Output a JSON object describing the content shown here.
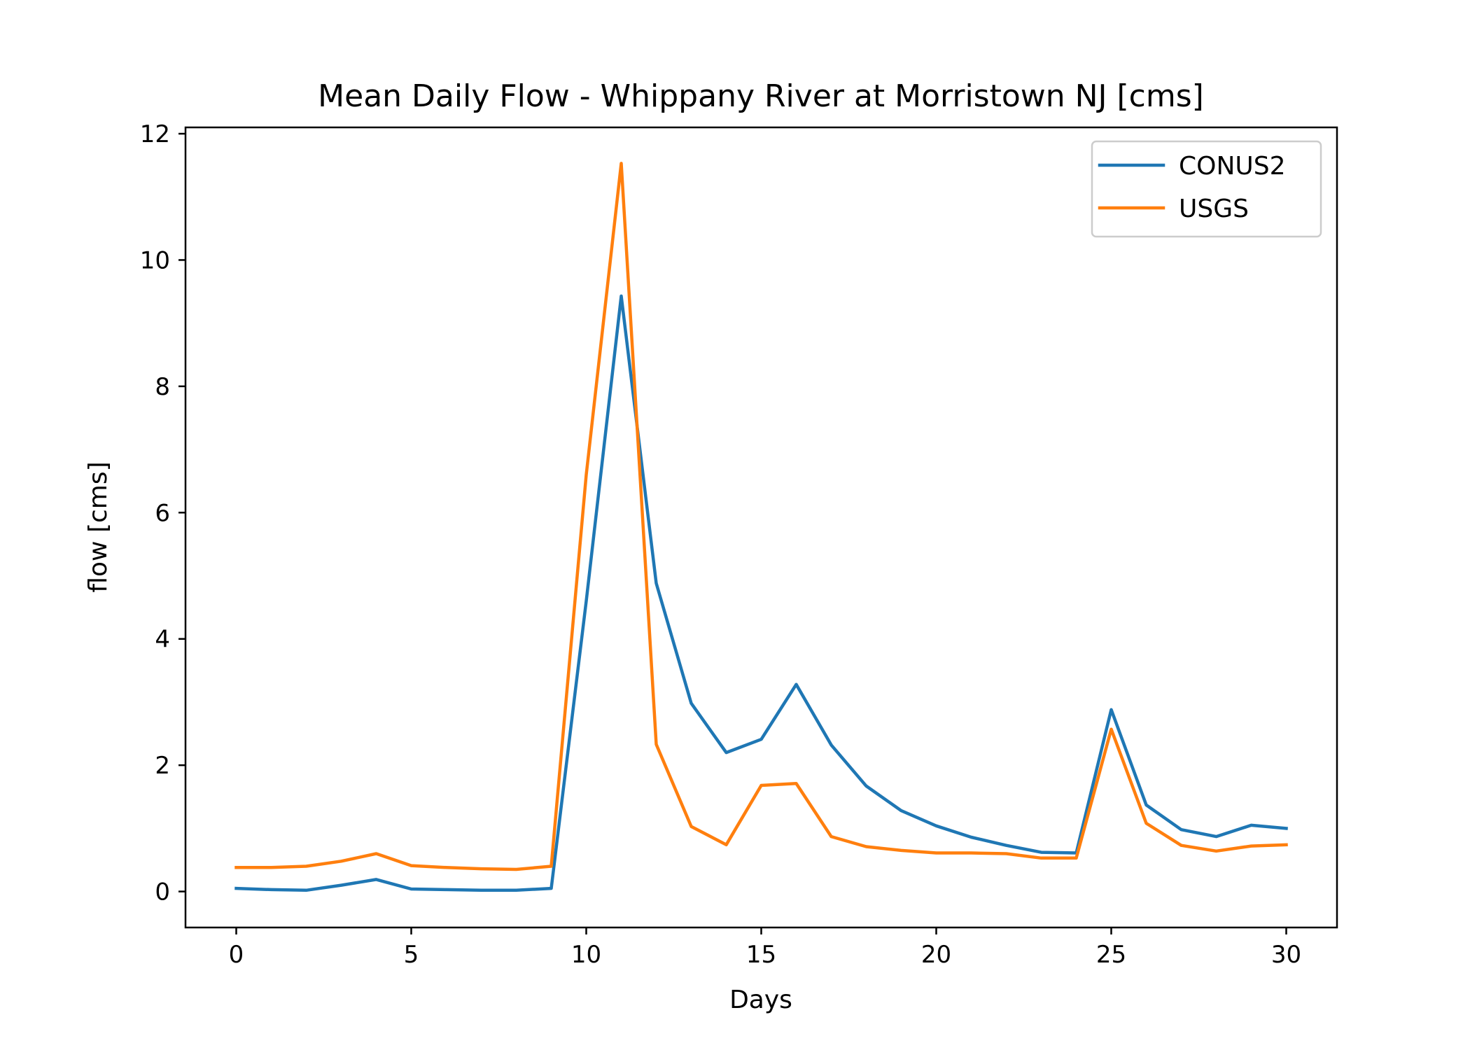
{
  "chart_data": {
    "type": "line",
    "title": "Mean Daily Flow - Whippany River at Morristown NJ [cms]",
    "xlabel": "Days",
    "ylabel": "flow [cms]",
    "xlim": [
      -1.45,
      31.45
    ],
    "ylim": [
      -0.57,
      12.1
    ],
    "xticks": [
      0,
      5,
      10,
      15,
      20,
      25,
      30
    ],
    "yticks": [
      0,
      2,
      4,
      6,
      8,
      10,
      12
    ],
    "xtick_labels": [
      "0",
      "5",
      "10",
      "15",
      "20",
      "25",
      "30"
    ],
    "ytick_labels": [
      "0",
      "2",
      "4",
      "6",
      "8",
      "10",
      "12"
    ],
    "grid": false,
    "legend_position": "upper right",
    "x": [
      0,
      1,
      2,
      3,
      4,
      5,
      6,
      7,
      8,
      9,
      10,
      11,
      12,
      13,
      14,
      15,
      16,
      17,
      18,
      19,
      20,
      21,
      22,
      23,
      24,
      25,
      26,
      27,
      28,
      29,
      30
    ],
    "series": [
      {
        "name": "CONUS2",
        "color": "#1f77b4",
        "values": [
          0.05,
          0.03,
          0.02,
          0.1,
          0.19,
          0.04,
          0.03,
          0.02,
          0.02,
          0.05,
          4.6,
          9.43,
          4.88,
          2.98,
          2.2,
          2.41,
          3.28,
          2.32,
          1.67,
          1.28,
          1.04,
          0.86,
          0.73,
          0.62,
          0.61,
          2.88,
          1.37,
          0.98,
          0.87,
          1.05,
          1.0
        ]
      },
      {
        "name": "USGS",
        "color": "#ff7f0e",
        "values": [
          0.38,
          0.38,
          0.4,
          0.48,
          0.6,
          0.41,
          0.38,
          0.36,
          0.35,
          0.4,
          6.6,
          11.53,
          2.33,
          1.03,
          0.74,
          1.68,
          1.71,
          0.87,
          0.71,
          0.65,
          0.61,
          0.61,
          0.6,
          0.53,
          0.53,
          2.57,
          1.08,
          0.73,
          0.64,
          0.72,
          0.74
        ]
      }
    ]
  }
}
